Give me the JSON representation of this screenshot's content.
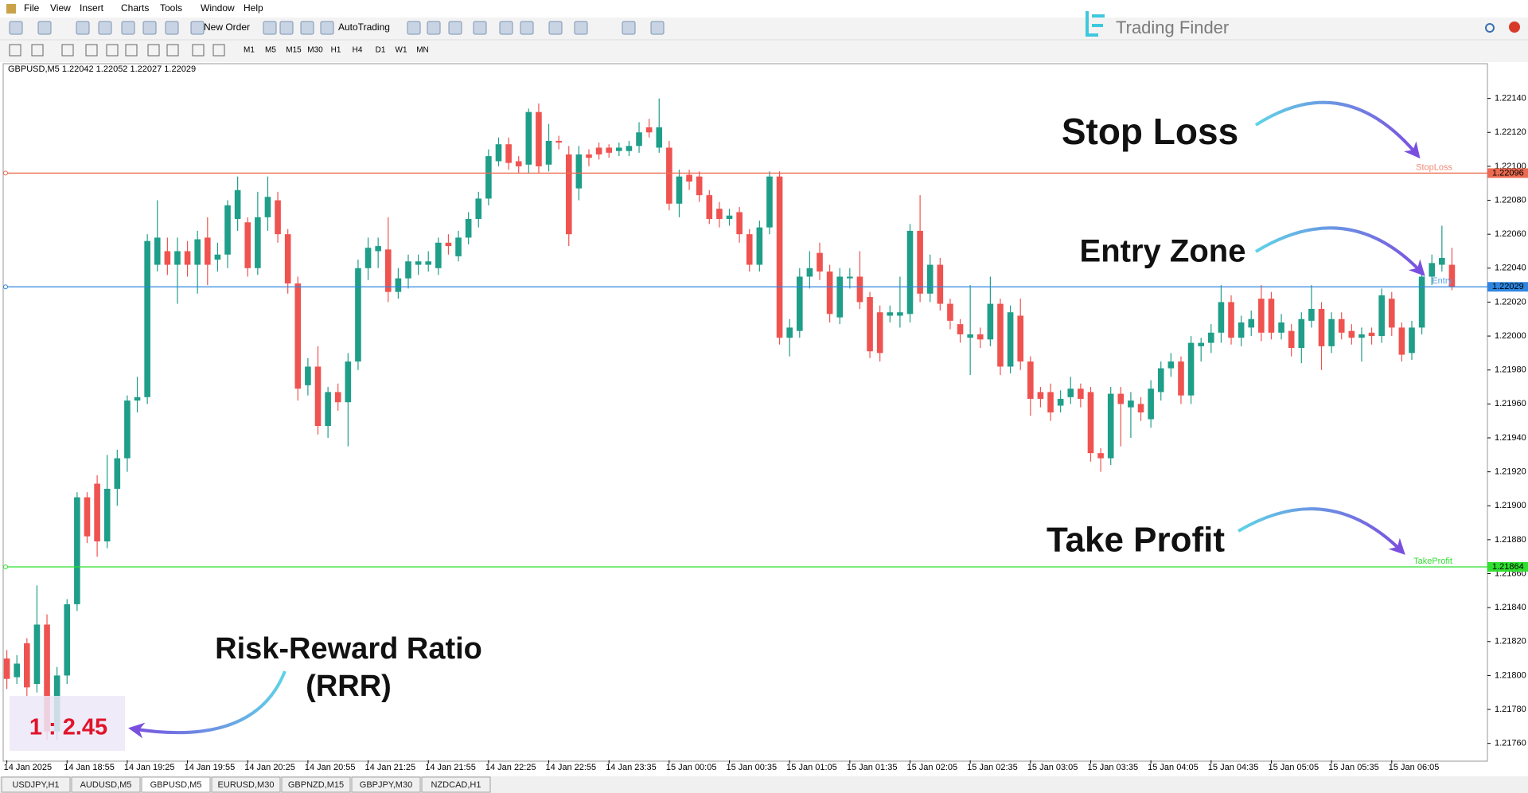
{
  "menu": [
    "File",
    "View",
    "Insert",
    "Charts",
    "Tools",
    "Window",
    "Help"
  ],
  "toolbar": {
    "new_order": "New Order",
    "auto_trading": "AutoTrading",
    "timeframes": [
      "M1",
      "M5",
      "M15",
      "M30",
      "H1",
      "H4",
      "D1",
      "W1",
      "MN"
    ]
  },
  "logo": "Trading Finder",
  "chart_data": {
    "type": "candlestick",
    "header": "GBPUSD,M5  1.22042 1.22052 1.22027 1.22029",
    "up_color": "#1f9e89",
    "down_color": "#ef5350",
    "categories": [
      "14 Jan 2025",
      null,
      null,
      null,
      null,
      null,
      "14 Jan 18:55",
      null,
      null,
      null,
      null,
      null,
      "14 Jan 19:25",
      null,
      null,
      null,
      null,
      null,
      "14 Jan 19:55",
      null,
      null,
      null,
      null,
      null,
      "14 Jan 20:25",
      null,
      null,
      null,
      null,
      null,
      "14 Jan 20:55",
      null,
      null,
      null,
      null,
      null,
      "14 Jan 21:25",
      null,
      null,
      null,
      null,
      null,
      "14 Jan 21:55",
      null,
      null,
      null,
      null,
      null,
      "14 Jan 22:25",
      null,
      null,
      null,
      null,
      null,
      "14 Jan 22:55",
      null,
      null,
      null,
      null,
      null,
      "14 Jan 23:35",
      null,
      null,
      null,
      null,
      null,
      "15 Jan 00:05",
      null,
      null,
      null,
      null,
      null,
      "15 Jan 00:35",
      null,
      null,
      null,
      null,
      null,
      "15 Jan 01:05",
      null,
      null,
      null,
      null,
      null,
      "15 Jan 01:35",
      null,
      null,
      null,
      null,
      null,
      "15 Jan 02:05",
      null,
      null,
      null,
      null,
      null,
      "15 Jan 02:35",
      null,
      null,
      null,
      null,
      null,
      "15 Jan 03:05",
      null,
      null,
      null,
      null,
      null,
      "15 Jan 03:35",
      null,
      null,
      null,
      null,
      null,
      "15 Jan 04:05",
      null,
      null,
      null,
      null,
      null,
      "15 Jan 04:35",
      null,
      null,
      null,
      null,
      null,
      "15 Jan 05:05",
      null,
      null,
      null,
      null,
      null,
      "15 Jan 05:35",
      null,
      null,
      null,
      null,
      null,
      "15 Jan 06:05",
      null,
      null,
      null,
      null,
      null,
      null
    ],
    "open": [
      1.2181,
      1.21799,
      1.21819,
      1.21795,
      1.2183,
      1.21767,
      1.218,
      1.21842,
      1.21905,
      1.21913,
      1.21879,
      1.2191,
      1.21928,
      1.21962,
      1.21964,
      1.22042,
      1.2205,
      1.22042,
      1.2205,
      1.22042,
      1.22058,
      1.22045,
      1.22048,
      1.22069,
      1.22067,
      1.2204,
      1.2207,
      1.2208,
      1.2206,
      1.22031,
      1.21971,
      1.21982,
      1.21947,
      1.21967,
      1.21961,
      1.21985,
      1.2204,
      1.2205,
      1.22051,
      1.22026,
      1.22034,
      1.22042,
      1.22042,
      1.2204,
      1.22055,
      1.22047,
      1.22058,
      1.22069,
      1.22081,
      1.22103,
      1.22113,
      1.22103,
      1.22101,
      1.22132,
      1.22101,
      1.22115,
      1.22107,
      1.22087,
      1.22107,
      1.22111,
      1.22111,
      1.22109,
      1.22109,
      1.22112,
      1.22123,
      1.22111,
      1.22111,
      1.22078,
      1.22095,
      1.22094,
      1.22083,
      1.22075,
      1.22069,
      1.22073,
      1.2206,
      1.22042,
      1.22064,
      1.22094,
      1.21999,
      1.22003,
      1.22035,
      1.22049,
      1.22038,
      1.22011,
      1.22034,
      1.22035,
      1.22023,
      1.22014,
      1.22012,
      1.22012,
      1.22013,
      1.22062,
      1.22025,
      1.22042,
      1.22019,
      1.22007,
      1.21999,
      1.22001,
      1.21998,
      1.22019,
      1.21982,
      1.22012,
      1.21985,
      1.21967,
      1.21967,
      1.21959,
      1.21964,
      1.21969,
      1.21967,
      1.21931,
      1.21928,
      1.21966,
      1.21958,
      1.2196,
      1.21951,
      1.21967,
      1.21981,
      1.21985,
      1.21965,
      1.21994,
      1.21996,
      1.22002,
      1.2202,
      1.21999,
      1.22005,
      1.22022,
      1.22022,
      1.22002,
      1.22003,
      1.21993,
      1.22009,
      1.22016,
      1.21994,
      1.2201,
      1.22003,
      1.21999,
      1.22002,
      1.22,
      1.22022,
      1.22005,
      1.2199,
      1.22005,
      1.22035,
      1.22042,
      1.22042
    ],
    "high": [
      1.21815,
      1.21812,
      1.21822,
      1.21853,
      1.21836,
      1.21805,
      1.21845,
      1.21908,
      1.21908,
      1.21918,
      1.2193,
      1.21933,
      1.21965,
      1.21976,
      1.2206,
      1.2208,
      1.22058,
      1.22058,
      1.22056,
      1.22062,
      1.2207,
      1.22055,
      1.2208,
      1.22094,
      1.2207,
      1.22085,
      1.22094,
      1.22085,
      1.22063,
      1.22035,
      1.21987,
      1.21994,
      1.2197,
      1.21972,
      1.2199,
      1.22045,
      1.22058,
      1.22058,
      1.2207,
      1.2204,
      1.22048,
      1.22048,
      1.2205,
      1.22058,
      1.2206,
      1.22062,
      1.22073,
      1.22085,
      1.2211,
      1.22117,
      1.22117,
      1.22106,
      1.22134,
      1.22137,
      1.22125,
      1.22118,
      1.22112,
      1.22112,
      1.2211,
      1.22114,
      1.22113,
      1.22114,
      1.22115,
      1.22126,
      1.22128,
      1.2214,
      1.22115,
      1.22098,
      1.22098,
      1.22097,
      1.22086,
      1.22079,
      1.22075,
      1.22076,
      1.22063,
      1.22068,
      1.22097,
      1.22097,
      1.2201,
      1.2204,
      1.2205,
      1.22055,
      1.22042,
      1.2204,
      1.2204,
      1.2205,
      1.22026,
      1.22018,
      1.22018,
      1.22035,
      1.22066,
      1.22083,
      1.22048,
      1.22046,
      1.22022,
      1.2201,
      1.2203,
      1.22005,
      1.22035,
      1.22022,
      1.22018,
      1.22022,
      1.21988,
      1.2197,
      1.21972,
      1.21968,
      1.21976,
      1.21972,
      1.2197,
      1.21934,
      1.2197,
      1.2197,
      1.21967,
      1.21964,
      1.21974,
      1.21985,
      1.2199,
      1.21988,
      1.22,
      1.21999,
      1.22007,
      1.2203,
      1.22024,
      1.22012,
      1.22015,
      1.2203,
      1.22026,
      1.22013,
      1.22007,
      1.22014,
      1.2203,
      1.2202,
      1.22014,
      1.22014,
      1.22007,
      1.22005,
      1.22005,
      1.22028,
      1.22026,
      1.22008,
      1.22009,
      1.2204,
      1.22048,
      1.22065,
      1.22052
    ],
    "low": [
      1.21792,
      1.21795,
      1.21788,
      1.2179,
      1.21762,
      1.21762,
      1.21795,
      1.21838,
      1.21878,
      1.2187,
      1.21875,
      1.219,
      1.2192,
      1.21955,
      1.2196,
      1.22038,
      1.22036,
      1.22019,
      1.22035,
      1.22025,
      1.2203,
      1.22038,
      1.2204,
      1.22062,
      1.22035,
      1.22036,
      1.22062,
      1.22055,
      1.22025,
      1.21962,
      1.21965,
      1.21942,
      1.2194,
      1.21956,
      1.21935,
      1.2198,
      1.22033,
      1.2204,
      1.2202,
      1.22022,
      1.22028,
      1.22036,
      1.22038,
      1.22036,
      1.22048,
      1.22044,
      1.22054,
      1.22064,
      1.22077,
      1.221,
      1.22098,
      1.22096,
      1.22096,
      1.22096,
      1.22097,
      1.2211,
      1.22053,
      1.2208,
      1.221,
      1.22104,
      1.22105,
      1.22106,
      1.22106,
      1.22108,
      1.22117,
      1.22108,
      1.22074,
      1.2207,
      1.22086,
      1.22079,
      1.22066,
      1.22064,
      1.22065,
      1.22055,
      1.22038,
      1.22038,
      1.2206,
      1.21995,
      1.21988,
      1.21999,
      1.22028,
      1.22033,
      1.22008,
      1.22007,
      1.22028,
      1.22016,
      1.21987,
      1.21985,
      1.22008,
      1.22005,
      1.22008,
      1.2202,
      1.2202,
      1.22015,
      1.22004,
      1.21996,
      1.21977,
      1.21993,
      1.21994,
      1.21977,
      1.21978,
      1.2198,
      1.21953,
      1.21958,
      1.2195,
      1.21955,
      1.2196,
      1.21958,
      1.21926,
      1.2192,
      1.21924,
      1.21935,
      1.2194,
      1.2195,
      1.21946,
      1.21962,
      1.21976,
      1.2196,
      1.2196,
      1.21985,
      1.2199,
      1.21996,
      1.21995,
      1.21994,
      1.22,
      1.21997,
      1.21998,
      1.21998,
      1.21988,
      1.21984,
      1.22005,
      1.2198,
      1.2199,
      1.21998,
      1.21995,
      1.21985,
      1.21995,
      1.21996,
      1.22,
      1.21985,
      1.21986,
      1.22001,
      1.2203,
      1.22038,
      1.22027
    ],
    "close": [
      1.21798,
      1.21807,
      1.21793,
      1.2183,
      1.21767,
      1.218,
      1.21842,
      1.21905,
      1.21882,
      1.21879,
      1.2191,
      1.21928,
      1.21962,
      1.21964,
      1.22056,
      1.22058,
      1.22042,
      1.2205,
      1.22042,
      1.22057,
      1.22042,
      1.22048,
      1.22077,
      1.22086,
      1.2204,
      1.2207,
      1.22082,
      1.2206,
      1.22031,
      1.21969,
      1.21982,
      1.21947,
      1.21967,
      1.21961,
      1.21985,
      1.2204,
      1.22052,
      1.22053,
      1.22026,
      1.22034,
      1.22044,
      1.22044,
      1.22044,
      1.22055,
      1.22053,
      1.22058,
      1.22069,
      1.22081,
      1.22106,
      1.22113,
      1.22102,
      1.221,
      1.22132,
      1.221,
      1.22115,
      1.22114,
      1.2206,
      1.22107,
      1.22105,
      1.22107,
      1.22108,
      1.22111,
      1.22112,
      1.2212,
      1.2212,
      1.22123,
      1.22078,
      1.22094,
      1.22091,
      1.22083,
      1.22069,
      1.22069,
      1.22071,
      1.2206,
      1.22042,
      1.22064,
      1.22094,
      1.21999,
      1.22005,
      1.22035,
      1.2204,
      1.22038,
      1.22013,
      1.22035,
      1.22035,
      1.2202,
      1.21991,
      1.2199,
      1.22014,
      1.22014,
      1.22062,
      1.22025,
      1.22042,
      1.22019,
      1.22009,
      1.22001,
      1.22001,
      1.21998,
      1.22019,
      1.21982,
      1.22014,
      1.21985,
      1.21963,
      1.21963,
      1.21955,
      1.21963,
      1.21969,
      1.21963,
      1.21931,
      1.21928,
      1.21966,
      1.2196,
      1.21962,
      1.21955,
      1.21969,
      1.21981,
      1.21985,
      1.21965,
      1.21996,
      1.21996,
      1.22002,
      1.2202,
      1.21999,
      1.22008,
      1.2201,
      1.22002,
      1.22002,
      1.22008,
      1.21993,
      1.2201,
      1.22016,
      1.21994,
      1.2201,
      1.22002,
      1.21999,
      1.22001,
      1.22,
      1.22024,
      1.22005,
      1.21989,
      1.22005,
      1.22035,
      1.22043,
      1.22046,
      1.22029
    ],
    "ylim": [
      1.2175,
      1.2216
    ],
    "yticks": [
      {
        "value": 1.2214,
        "label": "1.22140"
      },
      {
        "value": 1.2212,
        "label": "1.22120"
      },
      {
        "value": 1.221,
        "label": "1.22100"
      },
      {
        "value": 1.2208,
        "label": "1.22080"
      },
      {
        "value": 1.2206,
        "label": "1.22060"
      },
      {
        "value": 1.2204,
        "label": "1.22040"
      },
      {
        "value": 1.2202,
        "label": "1.22020"
      },
      {
        "value": 1.22,
        "label": "1.22000"
      },
      {
        "value": 1.2198,
        "label": "1.21980"
      },
      {
        "value": 1.2196,
        "label": "1.21960"
      },
      {
        "value": 1.2194,
        "label": "1.21940"
      },
      {
        "value": 1.2192,
        "label": "1.21920"
      },
      {
        "value": 1.219,
        "label": "1.21900"
      },
      {
        "value": 1.2188,
        "label": "1.21880"
      },
      {
        "value": 1.2186,
        "label": "1.21860"
      },
      {
        "value": 1.2184,
        "label": "1.21840"
      },
      {
        "value": 1.2182,
        "label": "1.21820"
      },
      {
        "value": 1.218,
        "label": "1.21800"
      },
      {
        "value": 1.2178,
        "label": "1.21780"
      },
      {
        "value": 1.2176,
        "label": "1.21760"
      }
    ],
    "grid": false,
    "levels": [
      {
        "label": "StopLoss",
        "value": 1.22096,
        "color": "#ec6a50",
        "text_color": "#f08a76"
      },
      {
        "label": "Entry",
        "value": 1.22029,
        "color": "#2f86e0",
        "text_color": "#5aa0e8"
      },
      {
        "label": "TakeProfit",
        "value": 1.21864,
        "color": "#2fe02f",
        "text_color": "#33dd33"
      }
    ],
    "annotations": {
      "stop_loss": "Stop Loss",
      "entry_zone": "Entry Zone",
      "take_profit": "Take Profit",
      "rrr_title": "Risk-Reward Ratio",
      "rrr_abbr": "(RRR)",
      "rrr_value": "1 : 2.45"
    }
  },
  "tabs": [
    "USDJPY,H1",
    "AUDUSD,M5",
    "GBPUSD,M5",
    "EURUSD,M30",
    "GBPNZD,M15",
    "GBPJPY,M30",
    "NZDCAD,H1"
  ],
  "active_tab": 2
}
